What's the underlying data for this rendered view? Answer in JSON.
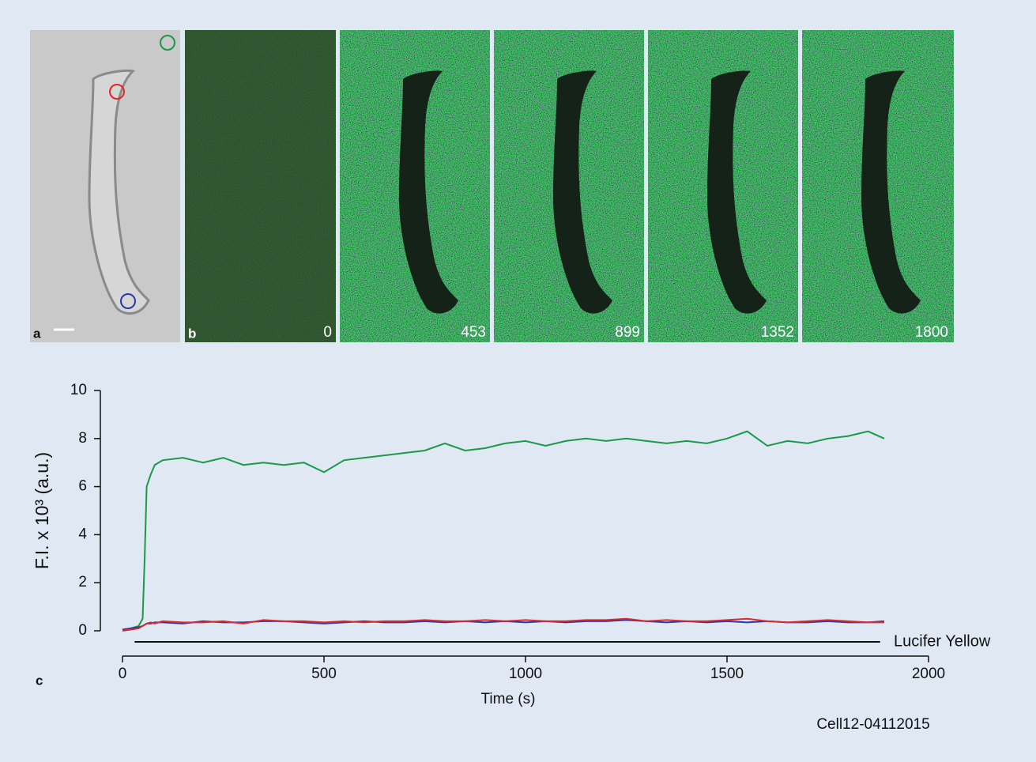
{
  "figure": {
    "panel_a_label": "a",
    "panel_b_label": "b",
    "panel_c_label": "c",
    "frame_labels": [
      0,
      453,
      899,
      1352,
      1800
    ]
  },
  "chart_data": {
    "type": "line",
    "xlabel": "Time (s)",
    "ylabel": "F.I. x 10³ (a.u.)",
    "note": "Cell12-04112015",
    "x": [
      0,
      20,
      40,
      50,
      55,
      60,
      70,
      80,
      100,
      150,
      200,
      250,
      300,
      350,
      400,
      450,
      500,
      550,
      600,
      650,
      700,
      750,
      800,
      850,
      900,
      950,
      1000,
      1050,
      1100,
      1150,
      1200,
      1250,
      1300,
      1350,
      1400,
      1450,
      1500,
      1550,
      1600,
      1650,
      1700,
      1750,
      1800,
      1850,
      1890
    ],
    "series": [
      {
        "color": "#1a9a48",
        "values": [
          0.05,
          0.1,
          0.2,
          0.5,
          3.0,
          6.0,
          6.5,
          6.9,
          7.1,
          7.2,
          7.0,
          7.2,
          6.9,
          7.0,
          6.9,
          7.0,
          6.6,
          7.1,
          7.2,
          7.3,
          7.4,
          7.5,
          7.8,
          7.5,
          7.6,
          7.8,
          7.9,
          7.7,
          7.9,
          8.0,
          7.9,
          8.0,
          7.9,
          7.8,
          7.9,
          7.8,
          8.0,
          8.3,
          7.7,
          7.9,
          7.8,
          8.0,
          8.1,
          8.3,
          8.0
        ]
      },
      {
        "color": "#2b3aa8",
        "values": [
          0.05,
          0.1,
          0.15,
          0.2,
          0.25,
          0.3,
          0.3,
          0.35,
          0.35,
          0.3,
          0.4,
          0.35,
          0.35,
          0.4,
          0.4,
          0.35,
          0.3,
          0.35,
          0.4,
          0.35,
          0.35,
          0.4,
          0.35,
          0.4,
          0.35,
          0.4,
          0.35,
          0.4,
          0.35,
          0.4,
          0.4,
          0.45,
          0.4,
          0.35,
          0.4,
          0.35,
          0.4,
          0.35,
          0.4,
          0.35,
          0.35,
          0.4,
          0.35,
          0.35,
          0.4
        ]
      },
      {
        "color": "#e02828",
        "values": [
          0.0,
          0.05,
          0.1,
          0.2,
          0.25,
          0.3,
          0.35,
          0.3,
          0.4,
          0.35,
          0.35,
          0.4,
          0.3,
          0.45,
          0.4,
          0.4,
          0.35,
          0.4,
          0.35,
          0.4,
          0.4,
          0.45,
          0.4,
          0.4,
          0.45,
          0.4,
          0.45,
          0.4,
          0.4,
          0.45,
          0.45,
          0.5,
          0.4,
          0.45,
          0.4,
          0.4,
          0.45,
          0.5,
          0.4,
          0.35,
          0.4,
          0.45,
          0.4,
          0.35,
          0.35
        ]
      }
    ],
    "xlim": [
      0,
      2000
    ],
    "xticks": [
      0,
      500,
      1000,
      1500,
      2000
    ],
    "ylim": [
      0,
      10
    ],
    "yticks": [
      0,
      2,
      4,
      6,
      8,
      10
    ],
    "bar": {
      "label": "Lucifer Yellow",
      "x": [
        30,
        1880
      ]
    }
  }
}
